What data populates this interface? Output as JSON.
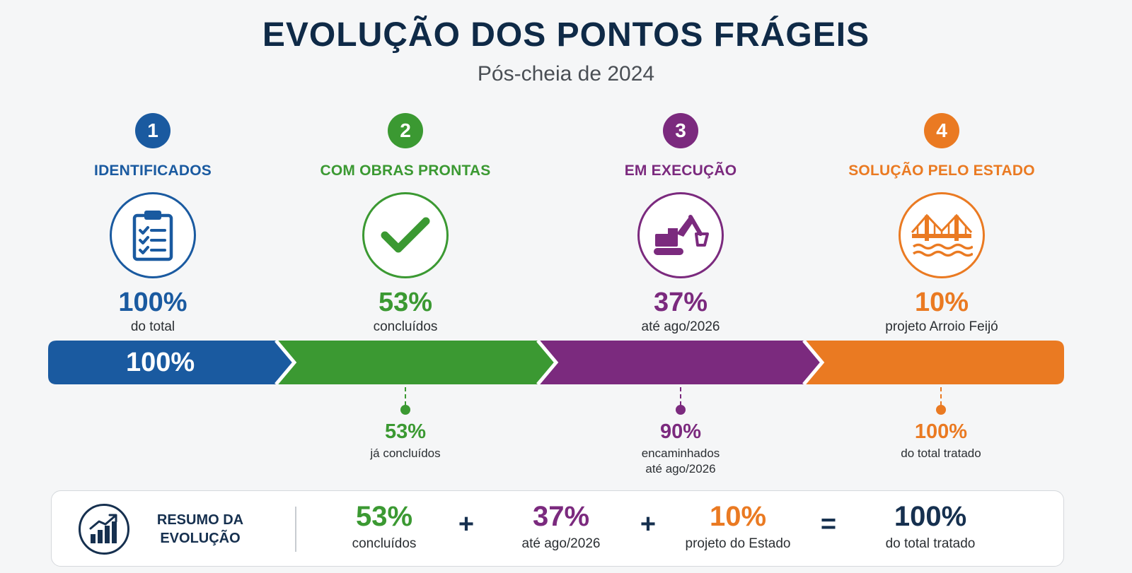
{
  "header": {
    "title": "EVOLUÇÃO DOS PONTOS FRÁGEIS",
    "subtitle": "Pós-cheia de 2024"
  },
  "colors": {
    "blue": "#1a5aa0",
    "green": "#3b9932",
    "purple": "#7b2a7e",
    "orange": "#ea7a22",
    "navy": "#16304f"
  },
  "stages": [
    {
      "number": "1",
      "label": "IDENTIFICADOS",
      "icon": "clipboard-checklist-icon",
      "percent": "100%",
      "desc": "do total"
    },
    {
      "number": "2",
      "label": "COM OBRAS PRONTAS",
      "icon": "checkmark-icon",
      "percent": "53%",
      "desc": "concluídos"
    },
    {
      "number": "3",
      "label": "EM EXECUÇÃO",
      "icon": "excavator-icon",
      "percent": "37%",
      "desc": "até ago/2026"
    },
    {
      "number": "4",
      "label": "SOLUÇÃO PELO ESTADO",
      "icon": "bridge-icon",
      "percent": "10%",
      "desc": "projeto Arroio Feijó"
    }
  ],
  "progress_bar": {
    "label": "100%"
  },
  "connectors": [
    {
      "value": "53%",
      "label_line1": "já concluídos",
      "label_line2": ""
    },
    {
      "value": "90%",
      "label_line1": "encaminhados",
      "label_line2": "até ago/2026"
    },
    {
      "value": "100%",
      "label_line1": "do total tratado",
      "label_line2": ""
    }
  ],
  "summary": {
    "title_line1": "RESUMO DA",
    "title_line2": "EVOLUÇÃO",
    "icon": "growth-chart-icon",
    "items": [
      {
        "value": "53%",
        "label": "concluídos"
      },
      {
        "value": "37%",
        "label": "até ago/2026"
      },
      {
        "value": "10%",
        "label": "projeto do Estado"
      },
      {
        "value": "100%",
        "label": "do total tratado"
      }
    ],
    "operators": [
      "+",
      "+",
      "="
    ]
  }
}
